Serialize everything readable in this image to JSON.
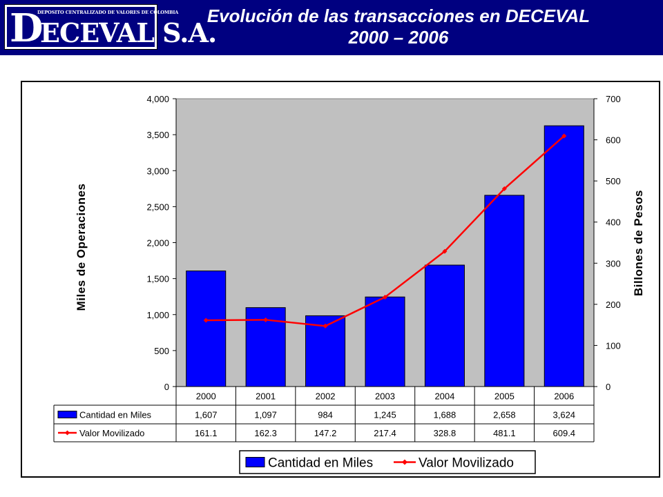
{
  "header": {
    "logo_small_text": "DEPOSITO CENTRALIZADO DE VALORES DE COLOMBIA",
    "logo_initial": "D",
    "logo_text": "ECEVAL S.A.",
    "title_line1": "Evolución de las transacciones en DECEVAL",
    "title_line2": "2000 – 2006"
  },
  "colors": {
    "header_bg": "#000080",
    "bar": "#0000ff",
    "line": "#ff0000",
    "plot_bg": "#c0c0c0"
  },
  "chart_data": {
    "type": "bar",
    "categories": [
      "2000",
      "2001",
      "2002",
      "2003",
      "2004",
      "2005",
      "2006"
    ],
    "series": [
      {
        "name": "Cantidad en Miles",
        "type": "bar",
        "axis": "left",
        "values": [
          1607,
          1097,
          984,
          1245,
          1688,
          2658,
          3624
        ],
        "labels": [
          "1,607",
          "1,097",
          "984",
          "1,245",
          "1,688",
          "2,658",
          "3,624"
        ]
      },
      {
        "name": "Valor Movilizado",
        "type": "line",
        "axis": "right",
        "values": [
          161.1,
          162.3,
          147.2,
          217.4,
          328.8,
          481.1,
          609.4
        ],
        "labels": [
          "161.1",
          "162.3",
          "147.2",
          "217.4",
          "328.8",
          "481.1",
          "609.4"
        ]
      }
    ],
    "ylabel": "Miles de Operaciones",
    "y2label": "Billones de Pesos",
    "ylim": [
      0,
      4000
    ],
    "y2lim": [
      0,
      700
    ],
    "yticks": [
      "0",
      "500",
      "1,000",
      "1,500",
      "2,000",
      "2,500",
      "3,000",
      "3,500",
      "4,000"
    ],
    "y2ticks": [
      "0",
      "100",
      "200",
      "300",
      "400",
      "500",
      "600",
      "700"
    ],
    "data_table": true,
    "legend_position": "bottom",
    "grid": false
  }
}
